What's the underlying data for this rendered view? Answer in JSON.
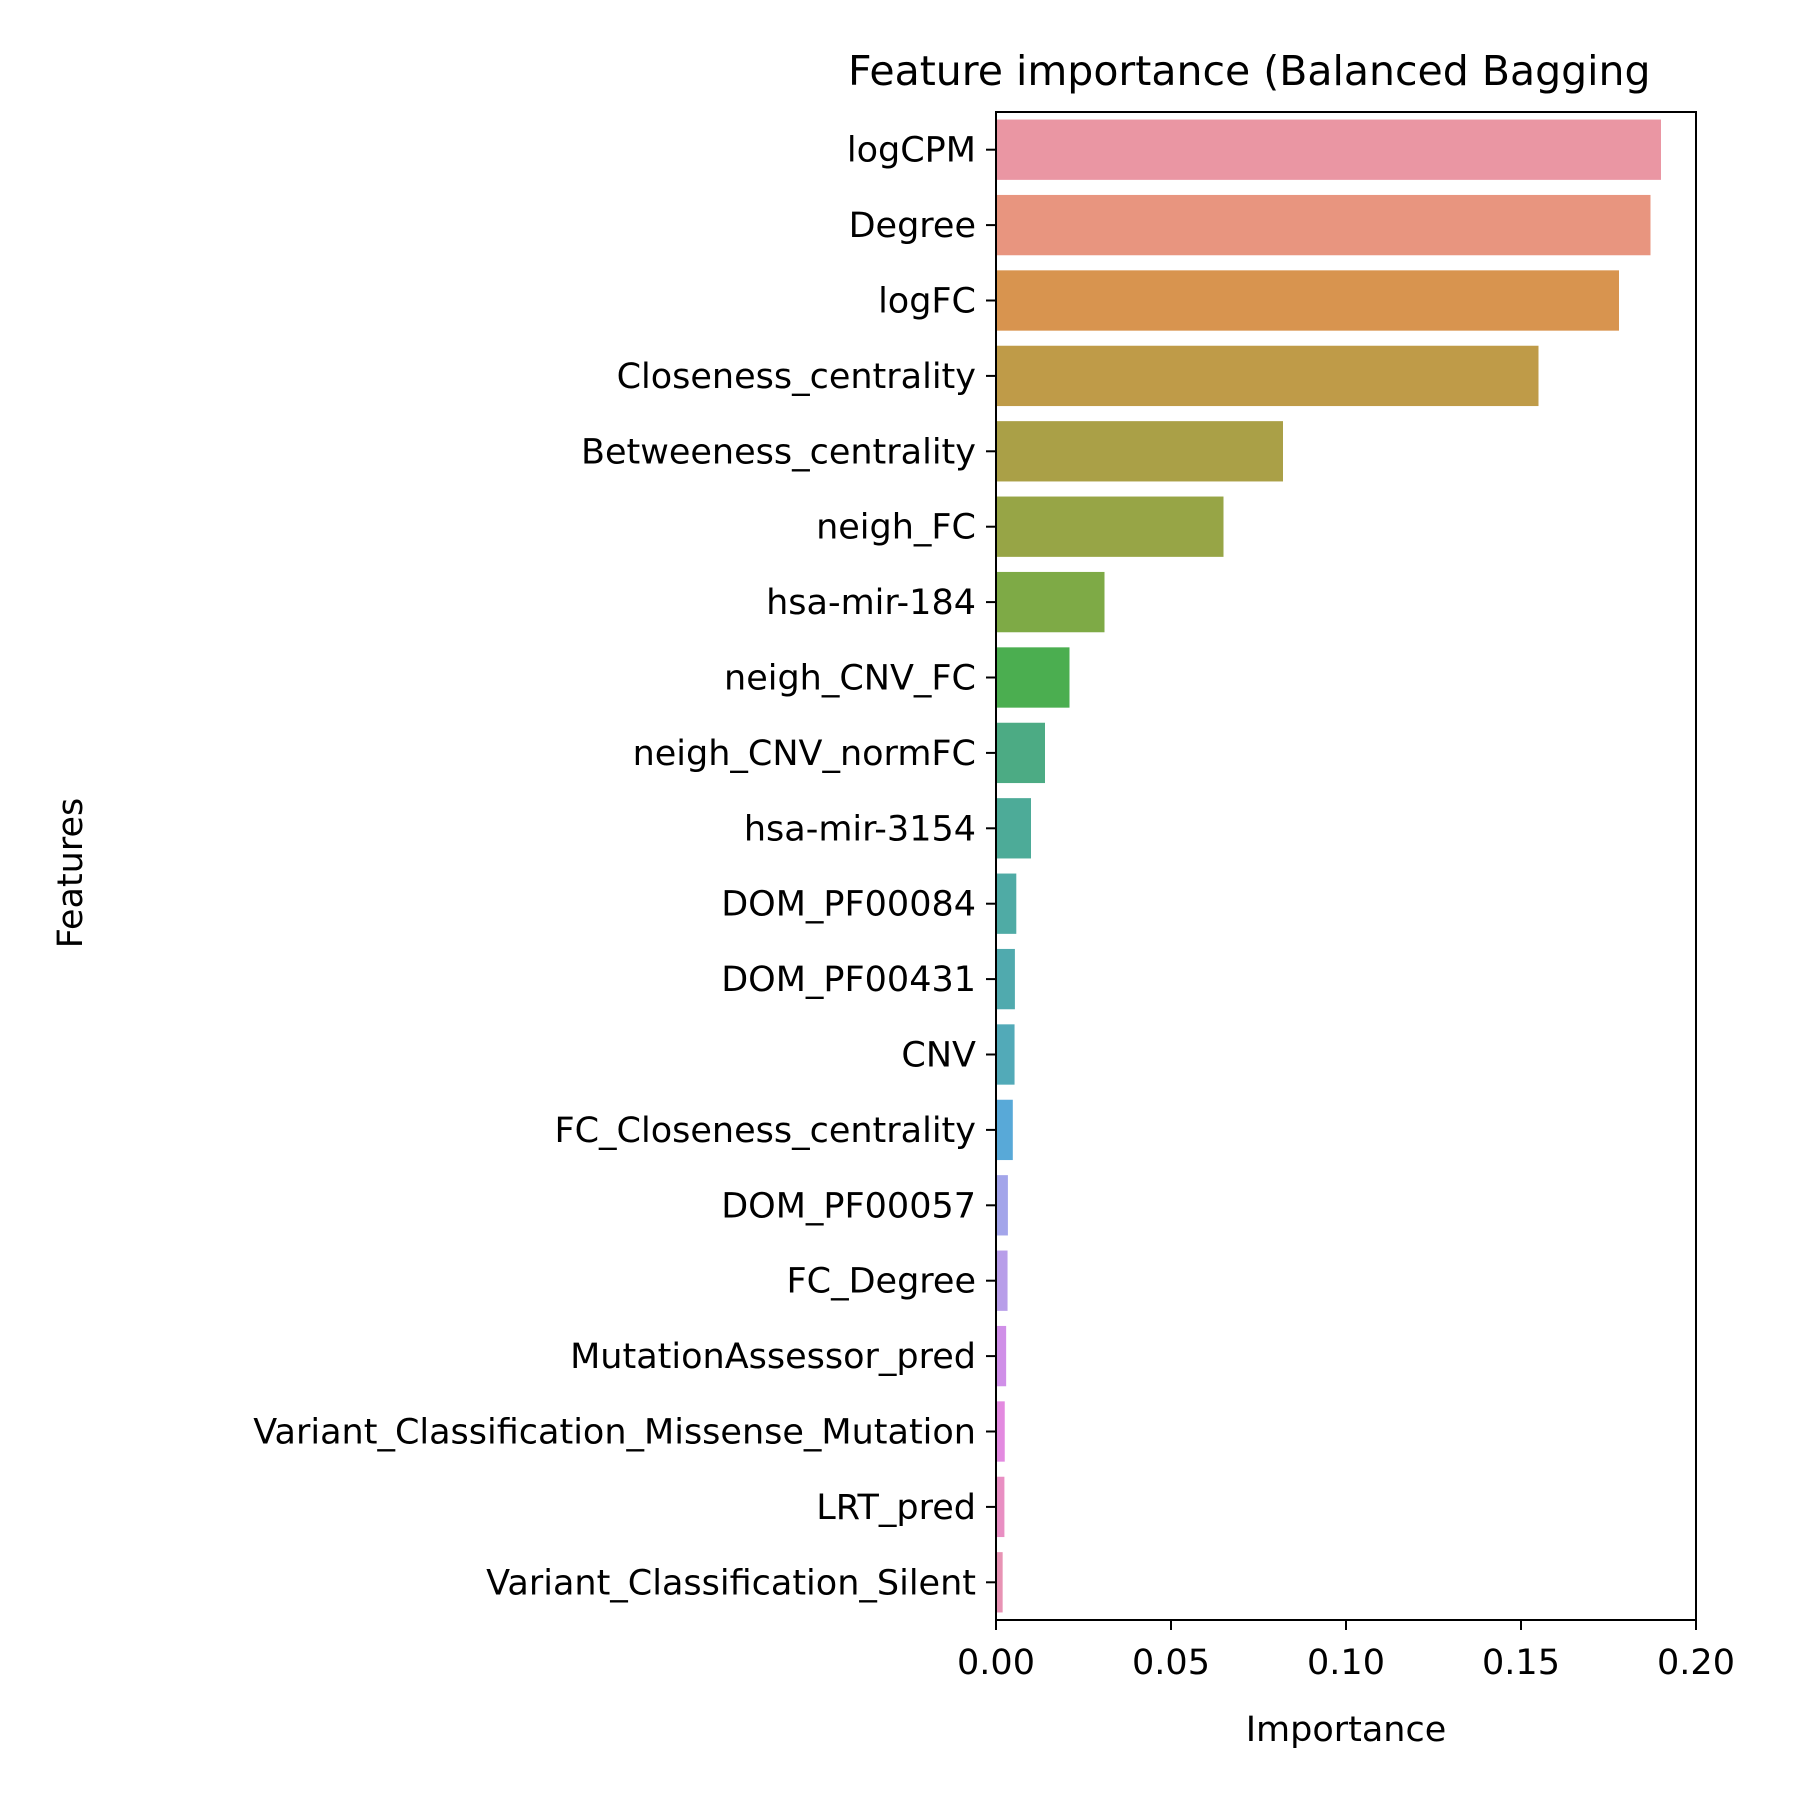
{
  "chart_data": {
    "type": "bar",
    "orientation": "horizontal",
    "title": "Feature importance (Balanced Bagging",
    "xlabel": "Importance",
    "ylabel": "Features",
    "xlim": [
      0.0,
      0.2
    ],
    "xticks": [
      "0.00",
      "0.05",
      "0.10",
      "0.15",
      "0.20"
    ],
    "grid": false,
    "categories": [
      "logCPM",
      "Degree",
      "logFC",
      "Closeness_centrality",
      "Betweeness_centrality",
      "neigh_FC",
      "hsa-mir-184",
      "neigh_CNV_FC",
      "neigh_CNV_normFC",
      "hsa-mir-3154",
      "DOM_PF00084",
      "DOM_PF00431",
      "CNV",
      "FC_Closeness_centrality",
      "DOM_PF00057",
      "FC_Degree",
      "MutationAssessor_pred",
      "Variant_Classification_Missense_Mutation",
      "LRT_pred",
      "Variant_Classification_Silent"
    ],
    "values": [
      0.19,
      0.187,
      0.178,
      0.155,
      0.082,
      0.065,
      0.031,
      0.021,
      0.014,
      0.01,
      0.0058,
      0.0054,
      0.0053,
      0.0048,
      0.0034,
      0.0033,
      0.0029,
      0.0025,
      0.0024,
      0.0019
    ],
    "colors": [
      "#ea96a3",
      "#e8957f",
      "#d8944f",
      "#bf9b48",
      "#aaa047",
      "#97a546",
      "#7eaa46",
      "#4bae50",
      "#4cab84",
      "#4dab98",
      "#4faba5",
      "#50aaae",
      "#52aab8",
      "#58a9d8",
      "#a3a5ea",
      "#b89ee9",
      "#d08fe8",
      "#e38ae0",
      "#e98fc3",
      "#e893b4"
    ]
  }
}
